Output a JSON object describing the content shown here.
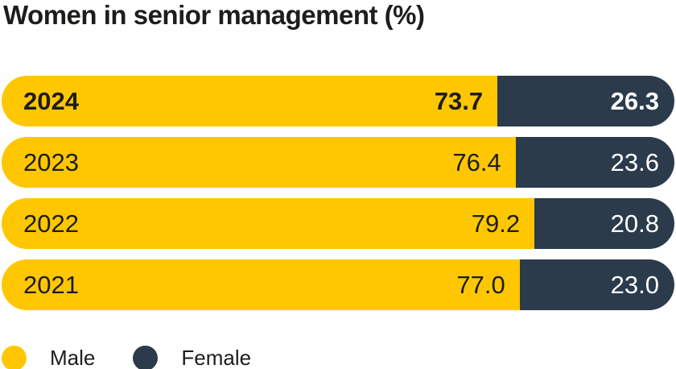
{
  "title": "Women in senior management (%)",
  "colors": {
    "male": "#fec701",
    "female": "#2b3b4c",
    "text": "#1d1d1b",
    "value_on_female": "#ffffff",
    "background": "#ffffff"
  },
  "chart_data": {
    "type": "bar",
    "orientation": "horizontal-stacked",
    "title": "Women in senior management (%)",
    "categories": [
      "2024",
      "2023",
      "2022",
      "2021"
    ],
    "series": [
      {
        "name": "Male",
        "values": [
          73.7,
          76.4,
          79.2,
          77.0
        ]
      },
      {
        "name": "Female",
        "values": [
          26.3,
          23.6,
          20.8,
          23.0
        ]
      }
    ],
    "unit": "%",
    "xlim": [
      0,
      100
    ],
    "grid": false,
    "legend_position": "bottom-left",
    "highlighted_category": "2024"
  },
  "rows": [
    {
      "year": "2024",
      "male_label": "73.7",
      "female_label": "26.3",
      "male_pct": 73.7,
      "highlight": true
    },
    {
      "year": "2023",
      "male_label": "76.4",
      "female_label": "23.6",
      "male_pct": 76.4,
      "highlight": false
    },
    {
      "year": "2022",
      "male_label": "79.2",
      "female_label": "20.8",
      "male_pct": 79.2,
      "highlight": false
    },
    {
      "year": "2021",
      "male_label": "77.0",
      "female_label": "23.0",
      "male_pct": 77.0,
      "highlight": false
    }
  ],
  "legend": {
    "items": [
      {
        "label": "Male",
        "color": "#fec701"
      },
      {
        "label": "Female",
        "color": "#2b3b4c"
      }
    ]
  }
}
